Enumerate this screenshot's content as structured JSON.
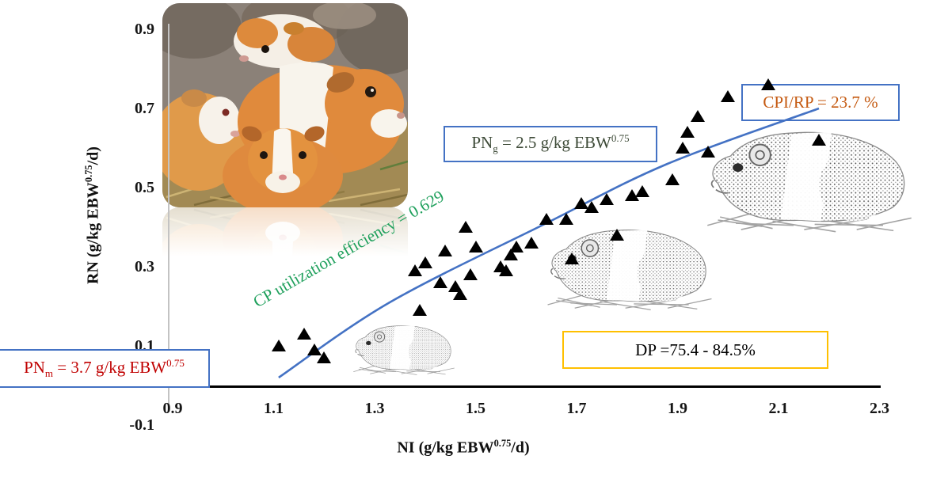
{
  "chart_data": {
    "type": "scatter",
    "xlabel_parts": {
      "pre": "NI (g/kg EBW",
      "sup": "0.75",
      "post": "/d)"
    },
    "ylabel_parts": {
      "pre": "RN (g/kg EBW",
      "sup": "0.75",
      "post": "/d)"
    },
    "x_ticks": [
      "0.9",
      "1.1",
      "1.3",
      "1.5",
      "1.7",
      "1.9",
      "2.1",
      "2.3"
    ],
    "y_ticks": [
      "0.9",
      "0.7",
      "0.5",
      "0.3",
      "0.1",
      "-0.1"
    ],
    "x_range": [
      0.9,
      2.3
    ],
    "y_range": [
      -0.1,
      0.9
    ],
    "grid": false,
    "legend": "none",
    "marker": {
      "shape": "triangle-up",
      "color": "#000000"
    },
    "points": [
      [
        1.11,
        0.1
      ],
      [
        1.16,
        0.13
      ],
      [
        1.18,
        0.09
      ],
      [
        1.2,
        0.07
      ],
      [
        1.38,
        0.29
      ],
      [
        1.39,
        0.19
      ],
      [
        1.4,
        0.31
      ],
      [
        1.43,
        0.26
      ],
      [
        1.44,
        0.34
      ],
      [
        1.46,
        0.25
      ],
      [
        1.47,
        0.23
      ],
      [
        1.48,
        0.4
      ],
      [
        1.49,
        0.28
      ],
      [
        1.5,
        0.35
      ],
      [
        1.55,
        0.3
      ],
      [
        1.56,
        0.29
      ],
      [
        1.57,
        0.33
      ],
      [
        1.58,
        0.35
      ],
      [
        1.61,
        0.36
      ],
      [
        1.64,
        0.42
      ],
      [
        1.68,
        0.42
      ],
      [
        1.69,
        0.32
      ],
      [
        1.71,
        0.46
      ],
      [
        1.73,
        0.45
      ],
      [
        1.76,
        0.47
      ],
      [
        1.78,
        0.38
      ],
      [
        1.81,
        0.48
      ],
      [
        1.83,
        0.49
      ],
      [
        1.89,
        0.52
      ],
      [
        1.91,
        0.6
      ],
      [
        1.92,
        0.64
      ],
      [
        1.94,
        0.68
      ],
      [
        1.96,
        0.59
      ],
      [
        2.0,
        0.73
      ],
      [
        2.08,
        0.76
      ],
      [
        2.18,
        0.62
      ]
    ],
    "trend_line": {
      "color": "#4472C4",
      "points": [
        [
          1.11,
          0.02
        ],
        [
          1.33,
          0.21
        ],
        [
          1.64,
          0.41
        ],
        [
          1.88,
          0.56
        ],
        [
          2.18,
          0.7
        ]
      ]
    }
  },
  "annotations": {
    "pn_m": {
      "pre": "PN",
      "sub": "m",
      "mid": " = 3.7 g/kg EBW",
      "sup": "0.75",
      "text_color": "#C00000",
      "border_color": "#4472C4"
    },
    "pn_g": {
      "pre": "PN",
      "sub": "g",
      "mid": " = 2.5 g/kg EBW",
      "sup": "0.75",
      "text_color": "#3E4B38",
      "border_color": "#4472C4"
    },
    "cpi_rp": {
      "text": "CPI/RP = 23.7 %",
      "text_color": "#C55A11",
      "border_color": "#4472C4"
    },
    "dp": {
      "text": "DP =75.4 - 84.5%",
      "text_color": "#000000",
      "border_color": "#FFC000"
    },
    "efficiency": {
      "text": "CP utilization efficiency = 0.629",
      "text_color": "#1FA05C"
    }
  },
  "icons": {
    "photo": "guinea-pigs-photo",
    "sketch": "guinea-pig-line-drawing"
  }
}
